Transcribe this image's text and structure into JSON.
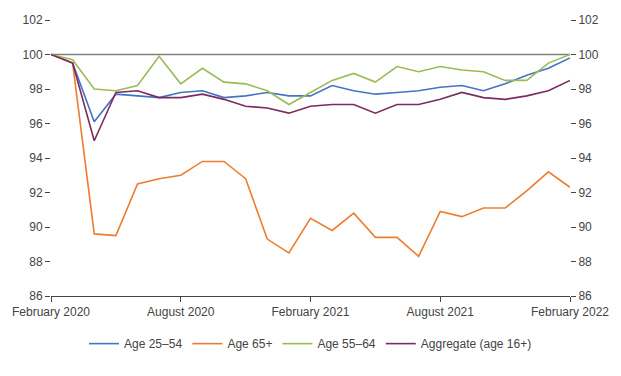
{
  "chart_data": {
    "type": "line",
    "categories": [
      "February 2020",
      null,
      null,
      null,
      null,
      null,
      "August 2020",
      null,
      null,
      null,
      null,
      null,
      "February 2021",
      null,
      null,
      null,
      null,
      null,
      "August 2021",
      null,
      null,
      null,
      null,
      null,
      "February 2022"
    ],
    "series": [
      {
        "name": "Age 25–54",
        "color": "#4472C4",
        "values": [
          100,
          99.5,
          96.1,
          97.7,
          97.6,
          97.5,
          97.8,
          97.9,
          97.5,
          97.6,
          97.8,
          97.6,
          97.6,
          98.2,
          97.9,
          97.7,
          97.8,
          97.9,
          98.1,
          98.2,
          97.9,
          98.3,
          98.8,
          99.2,
          99.8
        ]
      },
      {
        "name": "Age 65+",
        "color": "#ED7D31",
        "values": [
          100,
          99.5,
          89.6,
          89.5,
          92.5,
          92.8,
          93.0,
          93.8,
          93.8,
          92.8,
          89.3,
          88.5,
          90.5,
          89.8,
          90.8,
          89.4,
          89.4,
          88.3,
          90.9,
          90.6,
          91.1,
          91.1,
          92.1,
          93.2,
          92.3
        ]
      },
      {
        "name": "Age 55–64",
        "color": "#9BBB59",
        "values": [
          100,
          99.7,
          98.0,
          97.9,
          98.2,
          99.9,
          98.3,
          99.2,
          98.4,
          98.3,
          97.9,
          97.1,
          97.8,
          98.5,
          98.9,
          98.4,
          99.3,
          99.0,
          99.3,
          99.1,
          99.0,
          98.5,
          98.5,
          99.5,
          100.0
        ]
      },
      {
        "name": "Aggregate (age 16+)",
        "color": "#7B2C5E",
        "values": [
          100,
          99.5,
          95.0,
          97.8,
          97.9,
          97.5,
          97.5,
          97.7,
          97.4,
          97.0,
          96.9,
          96.6,
          97.0,
          97.1,
          97.1,
          96.6,
          97.1,
          97.1,
          97.4,
          97.8,
          97.5,
          97.4,
          97.6,
          97.9,
          98.5
        ]
      }
    ],
    "ylim": [
      86,
      102
    ],
    "yticks": [
      86,
      88,
      90,
      92,
      94,
      96,
      98,
      100,
      102
    ],
    "y2lim": [
      86,
      102
    ],
    "y2ticks": [
      86,
      88,
      90,
      92,
      94,
      96,
      98,
      100,
      102
    ],
    "hline": 100,
    "hline_color": "#808080",
    "grid": false,
    "legend": "bottom"
  }
}
